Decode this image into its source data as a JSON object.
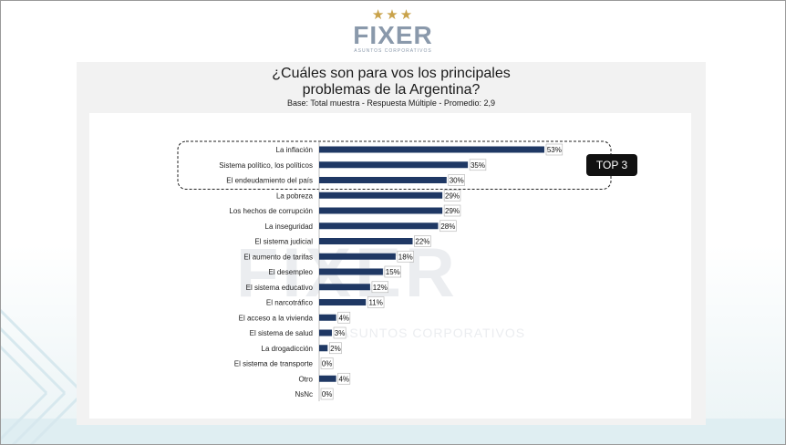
{
  "logo": {
    "stars": "★★★",
    "word": "FIXER",
    "tagline": "ASUNTOS CORPORATIVOS"
  },
  "watermark": {
    "word": "FIXER",
    "tagline": "ASUNTOS CORPORATIVOS"
  },
  "header": {
    "title_line1": "¿Cuáles son para vos los principales",
    "title_line2": "problemas de la Argentina?",
    "subtitle": "Base: Total muestra - Respuesta Múltiple - Promedio: 2,9"
  },
  "badge": {
    "label": "TOP 3"
  },
  "colors": {
    "bar": "#1f3864",
    "star": "#c9a24a",
    "logo": "#8a99ab"
  },
  "chart_data": {
    "type": "bar",
    "orientation": "horizontal",
    "categories": [
      "La inflación",
      "Sistema político, los políticos",
      "El endeudamiento del país",
      "La pobreza",
      "Los hechos de corrupción",
      "La inseguridad",
      "El sistema judicial",
      "El aumento de tarifas",
      "El desempleo",
      "El sistema educativo",
      "El narcotráfico",
      "El acceso a la vivienda",
      "El sistema de salud",
      "La drogadicción",
      "El sistema de transporte",
      "Otro",
      "NsNc"
    ],
    "values": [
      53,
      35,
      30,
      29,
      29,
      28,
      22,
      18,
      15,
      12,
      11,
      4,
      3,
      2,
      0,
      4,
      0
    ],
    "data_labels": [
      "53%",
      "35%",
      "30%",
      "29%",
      "29%",
      "28%",
      "22%",
      "18%",
      "15%",
      "12%",
      "11%",
      "4%",
      "3%",
      "2%",
      "0%",
      "4%",
      "0%"
    ],
    "title": "¿Cuáles son para vos los principales problemas de la Argentina?",
    "highlight": {
      "label": "TOP 3",
      "count": 3
    }
  }
}
